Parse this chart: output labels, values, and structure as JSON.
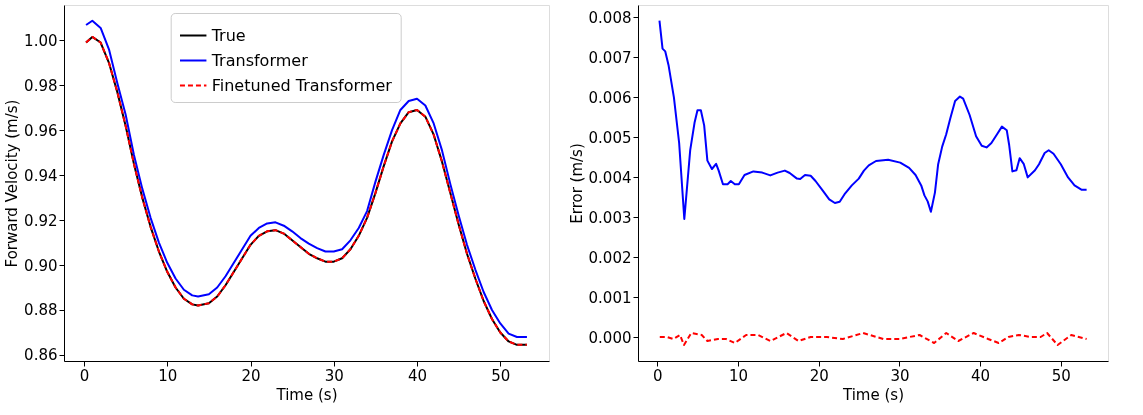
{
  "chart_data": [
    {
      "type": "line",
      "xlabel": "Time (s)",
      "ylabel": "Forward Velocity (m/s)",
      "grid": false,
      "legend": "top",
      "marker": "none",
      "xlim": [
        -2.4,
        55.85
      ],
      "xticks": [
        0,
        10,
        20,
        30,
        40,
        50
      ],
      "ylim": [
        0.8573,
        1.0157
      ],
      "yticks": [
        0.86,
        0.88,
        {
          "value": 0.9,
          "label": "0.90"
        },
        0.92,
        0.94,
        0.96,
        0.98,
        {
          "value": 1,
          "label": "1.00"
        }
      ],
      "x": [
        0.25,
        1,
        2,
        3,
        4,
        5,
        6,
        7,
        8,
        9,
        10,
        11,
        12,
        13,
        13.7,
        15,
        16,
        17,
        18,
        19,
        20,
        21,
        22,
        23,
        24,
        25,
        26,
        27,
        28,
        29,
        30,
        31,
        32,
        33,
        34,
        35,
        36,
        37,
        38,
        39,
        40,
        41,
        42,
        43,
        44,
        45,
        46,
        47,
        48,
        49,
        50,
        51,
        52,
        53.2
      ],
      "series": [
        {
          "name": "True",
          "color": "#000000",
          "line_style": "solid",
          "values": [
            0.999,
            1.0015,
            0.999,
            0.99,
            0.977,
            0.962,
            0.945,
            0.93,
            0.917,
            0.906,
            0.897,
            0.89,
            0.885,
            0.8825,
            0.882,
            0.883,
            0.886,
            0.891,
            0.897,
            0.903,
            0.909,
            0.913,
            0.915,
            0.9155,
            0.914,
            0.911,
            0.908,
            0.905,
            0.903,
            0.9015,
            0.9015,
            0.903,
            0.907,
            0.913,
            0.921,
            0.932,
            0.944,
            0.955,
            0.963,
            0.968,
            0.969,
            0.966,
            0.958,
            0.946,
            0.932,
            0.918,
            0.905,
            0.894,
            0.884,
            0.876,
            0.87,
            0.866,
            0.8645,
            0.8645
          ]
        },
        {
          "name": "Transformer",
          "color": "#0000ff",
          "line_style": "solid",
          "values": [
            1.0068,
            1.0087,
            1.0055,
            0.996,
            0.981,
            0.967,
            0.949,
            0.934,
            0.921,
            0.91,
            0.901,
            0.894,
            0.889,
            0.8865,
            0.886,
            0.887,
            0.89,
            0.895,
            0.901,
            0.907,
            0.913,
            0.9165,
            0.9185,
            0.919,
            0.9175,
            0.915,
            0.912,
            0.9095,
            0.9075,
            0.906,
            0.906,
            0.907,
            0.911,
            0.9165,
            0.924,
            0.937,
            0.949,
            0.96,
            0.969,
            0.973,
            0.974,
            0.971,
            0.963,
            0.951,
            0.936,
            0.922,
            0.909,
            0.898,
            0.888,
            0.88,
            0.874,
            0.8695,
            0.868,
            0.868
          ]
        },
        {
          "name": "Finetuned Transformer",
          "color": "#ff0000",
          "line_style": "dashed",
          "values": [
            0.999,
            1.0015,
            0.999,
            0.99,
            0.977,
            0.962,
            0.945,
            0.93,
            0.917,
            0.906,
            0.897,
            0.89,
            0.885,
            0.8825,
            0.882,
            0.883,
            0.886,
            0.891,
            0.897,
            0.903,
            0.909,
            0.913,
            0.915,
            0.9155,
            0.914,
            0.911,
            0.908,
            0.905,
            0.903,
            0.9015,
            0.9015,
            0.903,
            0.907,
            0.913,
            0.921,
            0.932,
            0.944,
            0.955,
            0.963,
            0.968,
            0.969,
            0.966,
            0.958,
            0.946,
            0.932,
            0.918,
            0.905,
            0.894,
            0.884,
            0.876,
            0.87,
            0.866,
            0.8645,
            0.8645
          ]
        }
      ]
    },
    {
      "type": "line",
      "xlabel": "Time (s)",
      "ylabel": "Error (m/s)",
      "grid": false,
      "marker": "none",
      "xlim": [
        -2.4,
        55.85
      ],
      "xticks": [
        0,
        10,
        20,
        30,
        40,
        50
      ],
      "ylim": [
        -0.0006,
        0.0083
      ],
      "yticks": [
        {
          "value": 0,
          "label": "0.000"
        },
        {
          "value": 0.001,
          "label": "0.001"
        },
        {
          "value": 0.002,
          "label": "0.002"
        },
        {
          "value": 0.003,
          "label": "0.003"
        },
        {
          "value": 0.004,
          "label": "0.004"
        },
        {
          "value": 0.005,
          "label": "0.005"
        },
        {
          "value": 0.006,
          "label": "0.006"
        },
        {
          "value": 0.007,
          "label": "0.007"
        },
        {
          "value": 0.008,
          "label": "0.008"
        }
      ],
      "series": [
        {
          "color": "#0000ff",
          "line_style": "solid",
          "x": [
            0.26,
            0.64,
            0.98,
            1.4,
            2.05,
            2.7,
            3.34,
            4.07,
            4.62,
            4.97,
            5.39,
            5.8,
            6.2,
            6.76,
            7.28,
            7.6,
            8.13,
            8.7,
            9.1,
            9.6,
            10.1,
            10.8,
            11.9,
            13.0,
            14.0,
            14.9,
            15.8,
            16.4,
            17.3,
            17.7,
            18.3,
            19.0,
            19.6,
            20.5,
            21.3,
            22.0,
            22.6,
            23.2,
            24.1,
            24.96,
            25.6,
            26.2,
            27.1,
            28.6,
            30.1,
            31.2,
            32.0,
            32.7,
            33.1,
            33.5,
            33.9,
            34.4,
            34.8,
            35.3,
            35.8,
            36.3,
            36.9,
            37.5,
            37.9,
            38.7,
            39.5,
            40.2,
            40.8,
            41.4,
            42.1,
            42.7,
            43.3,
            43.6,
            44.0,
            44.5,
            44.9,
            45.4,
            45.9,
            46.8,
            47.3,
            48.0,
            48.5,
            49.1,
            50.0,
            50.9,
            51.7,
            52.6,
            53.2
          ],
          "values": [
            0.00791,
            0.00721,
            0.00714,
            0.00678,
            0.00599,
            0.00485,
            0.00295,
            0.00467,
            0.00537,
            0.00567,
            0.00567,
            0.00529,
            0.00441,
            0.0042,
            0.00433,
            0.00416,
            0.00382,
            0.00382,
            0.0039,
            0.00382,
            0.00382,
            0.00405,
            0.00414,
            0.00411,
            0.00404,
            0.00411,
            0.00416,
            0.0041,
            0.00396,
            0.00395,
            0.00405,
            0.00403,
            0.0039,
            0.00366,
            0.00344,
            0.00335,
            0.00338,
            0.00357,
            0.00379,
            0.00396,
            0.00416,
            0.00429,
            0.0044,
            0.00443,
            0.00436,
            0.00423,
            0.00405,
            0.00379,
            0.00354,
            0.00339,
            0.00313,
            0.00361,
            0.00432,
            0.00476,
            0.00507,
            0.00546,
            0.0059,
            0.00601,
            0.00596,
            0.00555,
            0.00502,
            0.00478,
            0.00474,
            0.00485,
            0.00507,
            0.00526,
            0.00517,
            0.0048,
            0.00414,
            0.00417,
            0.00447,
            0.00433,
            0.00399,
            0.00417,
            0.00432,
            0.0046,
            0.00467,
            0.00458,
            0.00432,
            0.00399,
            0.00379,
            0.00368,
            0.00368
          ]
        },
        {
          "color": "#ff0000",
          "line_style": "dashed",
          "x": [
            0.3,
            1.2,
            2,
            2.8,
            3.3,
            4.2,
            5.5,
            6.2,
            7.5,
            8.5,
            9.6,
            11,
            12.5,
            14,
            16,
            17.5,
            19,
            21,
            23,
            25.5,
            28,
            30,
            32.5,
            34.3,
            35.8,
            37.3,
            39.2,
            41,
            42.3,
            43.5,
            44.8,
            46.3,
            47.5,
            48.3,
            49.6,
            51.3,
            53.2
          ],
          "values": [
            0,
            0,
            -5e-05,
            5e-05,
            -0.0002,
            0.0001,
            5e-05,
            -0.0001,
            -5e-05,
            -5e-05,
            -0.00015,
            5e-05,
            5e-05,
            -0.0001,
            0.0001,
            -0.0001,
            0,
            0,
            -5e-05,
            0.0001,
            -5e-05,
            -5e-05,
            5e-05,
            -0.00015,
            0.0001,
            -0.0001,
            0.0001,
            -5e-05,
            -0.00015,
            0,
            5e-05,
            0,
            0,
            0.0001,
            -0.0002,
            5e-05,
            -5e-05
          ]
        }
      ]
    }
  ]
}
